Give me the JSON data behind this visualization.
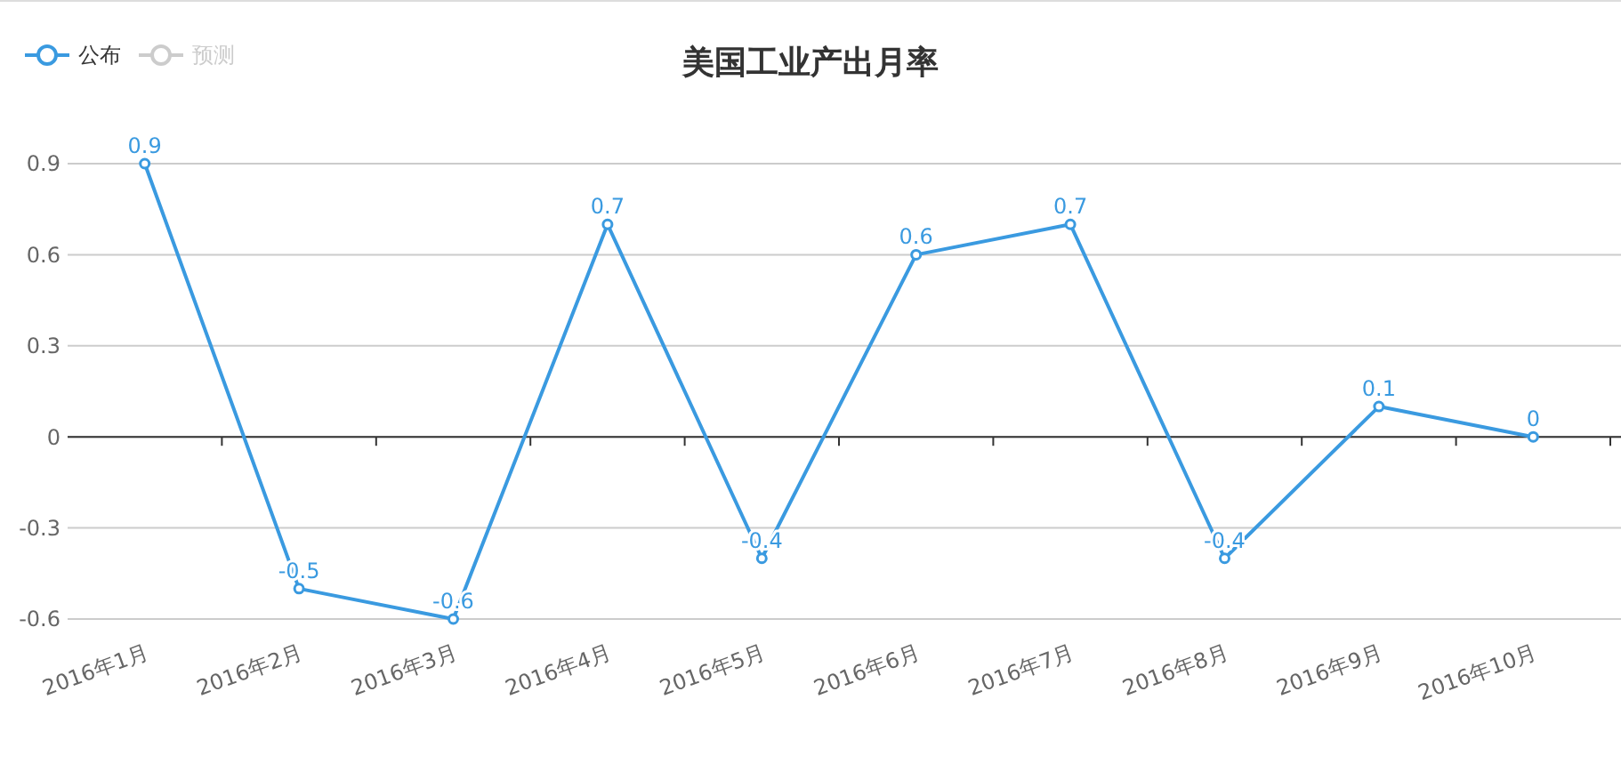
{
  "chart_data": {
    "type": "line",
    "title": "美国工业产出月率",
    "categories": [
      "2016年1月",
      "2016年2月",
      "2016年3月",
      "2016年4月",
      "2016年5月",
      "2016年6月",
      "2016年7月",
      "2016年8月",
      "2016年9月",
      "2016年10月"
    ],
    "series": [
      {
        "name": "公布",
        "color": "#3a9ae0",
        "values": [
          0.9,
          -0.5,
          -0.6,
          0.7,
          -0.4,
          0.6,
          0.7,
          -0.4,
          0.1,
          0
        ]
      },
      {
        "name": "预测",
        "color": "#cccccc",
        "values": [
          null,
          null,
          null,
          null,
          null,
          null,
          null,
          null,
          null,
          null
        ]
      }
    ],
    "ylim": [
      -0.6,
      0.9
    ],
    "yticks": [
      -0.6,
      -0.3,
      0,
      0.3,
      0.6,
      0.9
    ],
    "grid": "y",
    "legend": "top left",
    "marker": "circle",
    "line_style": "solid",
    "data_labels": true
  }
}
